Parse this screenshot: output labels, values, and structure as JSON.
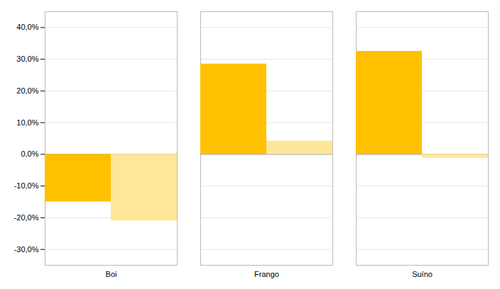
{
  "chart_data": {
    "type": "bar",
    "categories": [
      "Boi",
      "Frango",
      "Suíno"
    ],
    "series": [
      {
        "color": "#FFC000",
        "values": [
          -0.15,
          0.285,
          0.325
        ]
      },
      {
        "color": "#FFE699",
        "values": [
          -0.21,
          0.042,
          -0.012
        ]
      }
    ],
    "ylim": [
      -0.35,
      0.45
    ],
    "yticks": [
      {
        "value": -0.3,
        "label": "-30,0%"
      },
      {
        "value": -0.2,
        "label": "-20,0%"
      },
      {
        "value": -0.1,
        "label": "-10,0%"
      },
      {
        "value": 0.0,
        "label": "0,0%"
      },
      {
        "value": 0.1,
        "label": "10,0%"
      },
      {
        "value": 0.2,
        "label": "20,0%"
      },
      {
        "value": 0.3,
        "label": "30,0%"
      },
      {
        "value": 0.4,
        "label": "40,0%"
      }
    ],
    "grid": true
  }
}
